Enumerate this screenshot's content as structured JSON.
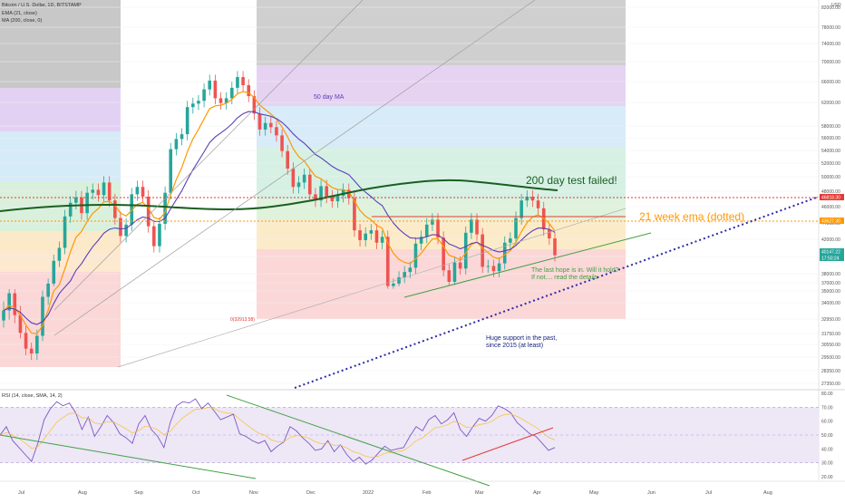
{
  "legend": {
    "symbol": "Bitcoin / U.S. Dollar, 1D, BITSTAMP",
    "ema": "EMA (21, close)",
    "ma": "MA (200, close, 0)"
  },
  "rsi_legend": "RSI (14, close, SMA, 14, 2)",
  "chart_data": [
    {
      "type": "candlestick",
      "title": "Bitcoin / U.S. Dollar, 1D, BITSTAMP",
      "currency": "USD",
      "y_axis_ticks": [
        "82000.00",
        "78000.00",
        "74000.00",
        "70000.00",
        "66000.00",
        "62000.00",
        "58000.00",
        "56000.00",
        "54000.00",
        "52000.00",
        "50000.00",
        "48000.00",
        "46000.00",
        "44000.00",
        "42000.00",
        "40000.00",
        "38000.00",
        "37000.00",
        "35000.00",
        "34000.00",
        "32950.00",
        "31750.00",
        "30550.00",
        "29500.00",
        "28350.00",
        "27350.00"
      ],
      "x_axis_ticks": [
        "Jul",
        "Aug",
        "Sep",
        "Oct",
        "Nov",
        "Dec",
        "2022",
        "Feb",
        "Mar",
        "Apr",
        "May",
        "Jun",
        "Jul",
        "Aug"
      ],
      "price_labels": [
        {
          "value": "46818.30",
          "color": "#e53935"
        },
        {
          "value": "43627.30",
          "color": "#ff9800"
        },
        {
          "value": "40147.22",
          "color": "#26a69a"
        },
        {
          "value": "17:50:24",
          "color": "#26a69a"
        }
      ],
      "annotations": [
        {
          "text": "50 day MA",
          "color": "#5b3fb5"
        },
        {
          "text": "200 day test failed!",
          "color": "#1b5e20"
        },
        {
          "text": "21 week ema (dotted)",
          "color": "#ff9800"
        },
        {
          "text": "The last hope is in. Will it hold?",
          "color": "#43a047"
        },
        {
          "text": "If not.... read the details",
          "color": "#43a047"
        },
        {
          "text": "Huge support in the past,",
          "color": "#1a237e"
        },
        {
          "text": "since 2015 (at least)",
          "color": "#1a237e"
        },
        {
          "text": "0(32913.58)",
          "color": "#e53935"
        }
      ],
      "series": [
        {
          "name": "EMA (21, close)",
          "color": "#ff9800"
        },
        {
          "name": "MA (200, close, 0)",
          "color": "#1b5e20"
        },
        {
          "color": "#5b3fb5"
        }
      ],
      "closes_sample": [
        33500,
        34800,
        33200,
        31800,
        30200,
        29800,
        31500,
        34500,
        36800,
        39500,
        41000,
        44800,
        46500,
        47200,
        45200,
        47800,
        48200,
        47500,
        49200,
        46800,
        44600,
        42400,
        43800,
        47600,
        48600,
        47300,
        43600,
        41200,
        43900,
        47800,
        54200,
        55800,
        56600,
        61200,
        61800,
        62300,
        64500,
        66200,
        62800,
        61900,
        62800,
        64800,
        66900,
        65300,
        63200,
        60100,
        57400,
        58500,
        57800,
        56400,
        53900,
        51200,
        48600,
        49200,
        50300,
        47600,
        46800,
        48700,
        47300,
        46700,
        47400,
        48200,
        47100,
        43100,
        41900,
        42700,
        43100,
        41600,
        42300,
        36200,
        36800,
        37600,
        38200,
        38700,
        41500,
        42300,
        43800,
        44400,
        42200,
        38400,
        37100,
        39300,
        38600,
        42800,
        44400,
        42600,
        38800,
        38900,
        38300,
        39200,
        41600,
        42100,
        44600,
        46800,
        47300,
        46800,
        45800,
        43200,
        42100,
        40147
      ],
      "rsi_y_ticks": [
        "80.00",
        "70.00",
        "60.00",
        "50.00",
        "40.00",
        "30.00",
        "20.00"
      ],
      "rsi_sample": [
        50,
        56,
        46,
        41,
        36,
        31,
        44,
        61,
        69,
        74,
        71,
        73,
        66,
        54,
        63,
        49,
        56,
        64,
        59,
        51,
        48,
        44,
        58,
        64,
        54,
        49,
        41,
        59,
        71,
        74,
        73,
        76,
        69,
        73,
        67,
        61,
        63,
        65,
        51,
        49,
        46,
        44,
        46,
        38,
        42,
        45,
        56,
        53,
        48,
        44,
        39,
        40,
        46,
        38,
        43,
        36,
        31,
        34,
        29,
        32,
        37,
        42,
        39,
        40,
        41,
        49,
        56,
        53,
        61,
        64,
        58,
        61,
        66,
        54,
        49,
        56,
        62,
        60,
        64,
        71,
        69,
        66,
        59,
        55,
        51,
        49,
        44,
        39,
        41
      ]
    }
  ]
}
